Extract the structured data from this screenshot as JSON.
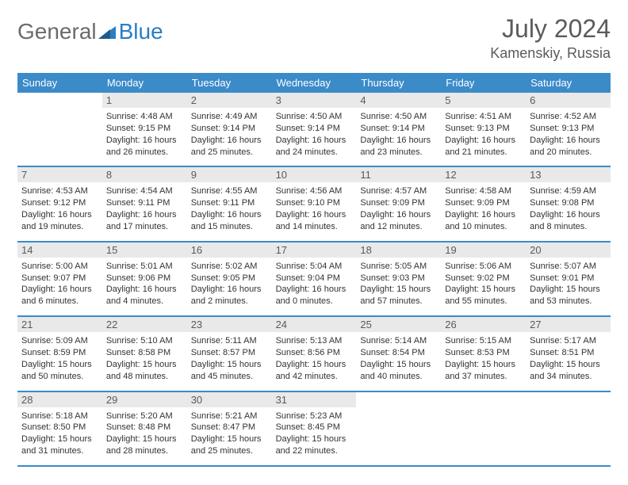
{
  "logo": {
    "text1": "General",
    "text2": "Blue"
  },
  "title": "July 2024",
  "location": "Kamenskiy, Russia",
  "colors": {
    "header_bg": "#3b8bc9",
    "header_text": "#ffffff",
    "daynum_bg": "#e9e9e9",
    "daynum_text": "#5a5a5a",
    "detail_text": "#333333",
    "title_text": "#5b5b5b",
    "logo_gray": "#6b6b6b",
    "logo_blue": "#2a7ec4"
  },
  "daynames": [
    "Sunday",
    "Monday",
    "Tuesday",
    "Wednesday",
    "Thursday",
    "Friday",
    "Saturday"
  ],
  "weeks": [
    [
      {
        "empty": true
      },
      {
        "n": "1",
        "sunrise": "Sunrise: 4:48 AM",
        "sunset": "Sunset: 9:15 PM",
        "day": "Daylight: 16 hours and 26 minutes."
      },
      {
        "n": "2",
        "sunrise": "Sunrise: 4:49 AM",
        "sunset": "Sunset: 9:14 PM",
        "day": "Daylight: 16 hours and 25 minutes."
      },
      {
        "n": "3",
        "sunrise": "Sunrise: 4:50 AM",
        "sunset": "Sunset: 9:14 PM",
        "day": "Daylight: 16 hours and 24 minutes."
      },
      {
        "n": "4",
        "sunrise": "Sunrise: 4:50 AM",
        "sunset": "Sunset: 9:14 PM",
        "day": "Daylight: 16 hours and 23 minutes."
      },
      {
        "n": "5",
        "sunrise": "Sunrise: 4:51 AM",
        "sunset": "Sunset: 9:13 PM",
        "day": "Daylight: 16 hours and 21 minutes."
      },
      {
        "n": "6",
        "sunrise": "Sunrise: 4:52 AM",
        "sunset": "Sunset: 9:13 PM",
        "day": "Daylight: 16 hours and 20 minutes."
      }
    ],
    [
      {
        "n": "7",
        "sunrise": "Sunrise: 4:53 AM",
        "sunset": "Sunset: 9:12 PM",
        "day": "Daylight: 16 hours and 19 minutes."
      },
      {
        "n": "8",
        "sunrise": "Sunrise: 4:54 AM",
        "sunset": "Sunset: 9:11 PM",
        "day": "Daylight: 16 hours and 17 minutes."
      },
      {
        "n": "9",
        "sunrise": "Sunrise: 4:55 AM",
        "sunset": "Sunset: 9:11 PM",
        "day": "Daylight: 16 hours and 15 minutes."
      },
      {
        "n": "10",
        "sunrise": "Sunrise: 4:56 AM",
        "sunset": "Sunset: 9:10 PM",
        "day": "Daylight: 16 hours and 14 minutes."
      },
      {
        "n": "11",
        "sunrise": "Sunrise: 4:57 AM",
        "sunset": "Sunset: 9:09 PM",
        "day": "Daylight: 16 hours and 12 minutes."
      },
      {
        "n": "12",
        "sunrise": "Sunrise: 4:58 AM",
        "sunset": "Sunset: 9:09 PM",
        "day": "Daylight: 16 hours and 10 minutes."
      },
      {
        "n": "13",
        "sunrise": "Sunrise: 4:59 AM",
        "sunset": "Sunset: 9:08 PM",
        "day": "Daylight: 16 hours and 8 minutes."
      }
    ],
    [
      {
        "n": "14",
        "sunrise": "Sunrise: 5:00 AM",
        "sunset": "Sunset: 9:07 PM",
        "day": "Daylight: 16 hours and 6 minutes."
      },
      {
        "n": "15",
        "sunrise": "Sunrise: 5:01 AM",
        "sunset": "Sunset: 9:06 PM",
        "day": "Daylight: 16 hours and 4 minutes."
      },
      {
        "n": "16",
        "sunrise": "Sunrise: 5:02 AM",
        "sunset": "Sunset: 9:05 PM",
        "day": "Daylight: 16 hours and 2 minutes."
      },
      {
        "n": "17",
        "sunrise": "Sunrise: 5:04 AM",
        "sunset": "Sunset: 9:04 PM",
        "day": "Daylight: 16 hours and 0 minutes."
      },
      {
        "n": "18",
        "sunrise": "Sunrise: 5:05 AM",
        "sunset": "Sunset: 9:03 PM",
        "day": "Daylight: 15 hours and 57 minutes."
      },
      {
        "n": "19",
        "sunrise": "Sunrise: 5:06 AM",
        "sunset": "Sunset: 9:02 PM",
        "day": "Daylight: 15 hours and 55 minutes."
      },
      {
        "n": "20",
        "sunrise": "Sunrise: 5:07 AM",
        "sunset": "Sunset: 9:01 PM",
        "day": "Daylight: 15 hours and 53 minutes."
      }
    ],
    [
      {
        "n": "21",
        "sunrise": "Sunrise: 5:09 AM",
        "sunset": "Sunset: 8:59 PM",
        "day": "Daylight: 15 hours and 50 minutes."
      },
      {
        "n": "22",
        "sunrise": "Sunrise: 5:10 AM",
        "sunset": "Sunset: 8:58 PM",
        "day": "Daylight: 15 hours and 48 minutes."
      },
      {
        "n": "23",
        "sunrise": "Sunrise: 5:11 AM",
        "sunset": "Sunset: 8:57 PM",
        "day": "Daylight: 15 hours and 45 minutes."
      },
      {
        "n": "24",
        "sunrise": "Sunrise: 5:13 AM",
        "sunset": "Sunset: 8:56 PM",
        "day": "Daylight: 15 hours and 42 minutes."
      },
      {
        "n": "25",
        "sunrise": "Sunrise: 5:14 AM",
        "sunset": "Sunset: 8:54 PM",
        "day": "Daylight: 15 hours and 40 minutes."
      },
      {
        "n": "26",
        "sunrise": "Sunrise: 5:15 AM",
        "sunset": "Sunset: 8:53 PM",
        "day": "Daylight: 15 hours and 37 minutes."
      },
      {
        "n": "27",
        "sunrise": "Sunrise: 5:17 AM",
        "sunset": "Sunset: 8:51 PM",
        "day": "Daylight: 15 hours and 34 minutes."
      }
    ],
    [
      {
        "n": "28",
        "sunrise": "Sunrise: 5:18 AM",
        "sunset": "Sunset: 8:50 PM",
        "day": "Daylight: 15 hours and 31 minutes."
      },
      {
        "n": "29",
        "sunrise": "Sunrise: 5:20 AM",
        "sunset": "Sunset: 8:48 PM",
        "day": "Daylight: 15 hours and 28 minutes."
      },
      {
        "n": "30",
        "sunrise": "Sunrise: 5:21 AM",
        "sunset": "Sunset: 8:47 PM",
        "day": "Daylight: 15 hours and 25 minutes."
      },
      {
        "n": "31",
        "sunrise": "Sunrise: 5:23 AM",
        "sunset": "Sunset: 8:45 PM",
        "day": "Daylight: 15 hours and 22 minutes."
      },
      {
        "empty": true
      },
      {
        "empty": true
      },
      {
        "empty": true
      }
    ]
  ]
}
